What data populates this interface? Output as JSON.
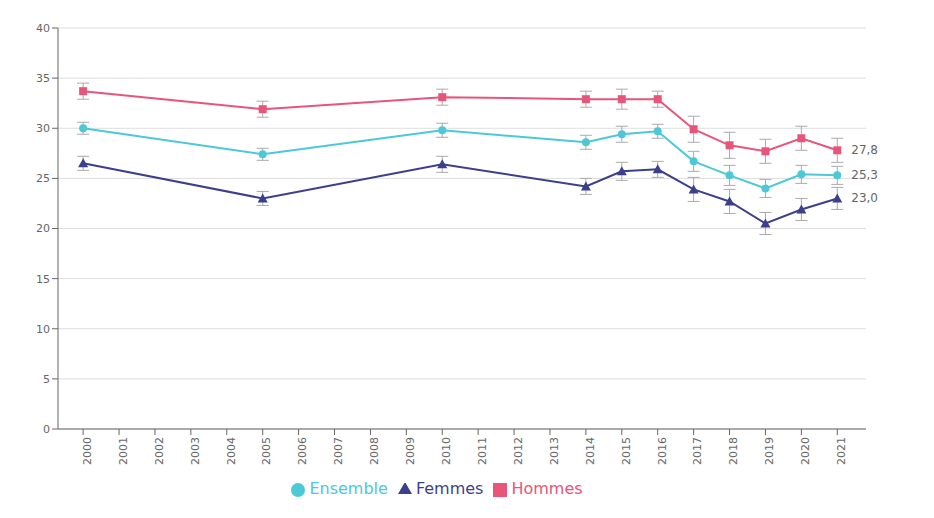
{
  "chart_data": {
    "type": "line",
    "x": [
      2000,
      2001,
      2002,
      2003,
      2004,
      2005,
      2006,
      2007,
      2008,
      2009,
      2010,
      2011,
      2012,
      2013,
      2014,
      2015,
      2016,
      2017,
      2018,
      2019,
      2020,
      2021
    ],
    "xlim": [
      1999.3,
      2021.8
    ],
    "xticks": [
      2000,
      2001,
      2002,
      2003,
      2004,
      2005,
      2006,
      2007,
      2008,
      2009,
      2010,
      2011,
      2012,
      2013,
      2014,
      2015,
      2016,
      2017,
      2018,
      2019,
      2020,
      2021
    ],
    "ylim": [
      0,
      40
    ],
    "yticks": [
      0,
      5,
      10,
      15,
      20,
      25,
      30,
      35,
      40
    ],
    "grid": true,
    "legend": "bottom",
    "series": [
      {
        "name": "Hommes",
        "color": "#E8557A",
        "marker": "square",
        "values": [
          33.7,
          null,
          null,
          null,
          null,
          31.9,
          null,
          null,
          null,
          null,
          33.1,
          null,
          null,
          null,
          32.9,
          32.9,
          32.9,
          29.9,
          28.3,
          27.7,
          29.0,
          27.8
        ],
        "errors": [
          0.8,
          null,
          null,
          null,
          null,
          0.8,
          null,
          null,
          null,
          null,
          0.8,
          null,
          null,
          null,
          0.8,
          1.0,
          0.8,
          1.3,
          1.3,
          1.2,
          1.2,
          1.2
        ],
        "value_labels": [
          null,
          null,
          null,
          null,
          null,
          null,
          null,
          null,
          null,
          null,
          null,
          null,
          null,
          null,
          null,
          null,
          null,
          null,
          null,
          null,
          null,
          "27,8"
        ]
      },
      {
        "name": "Femmes",
        "color": "#3B3F8C",
        "marker": "triangle",
        "values": [
          26.5,
          null,
          null,
          null,
          null,
          23.0,
          null,
          null,
          null,
          null,
          26.4,
          null,
          null,
          null,
          24.2,
          25.7,
          25.9,
          23.9,
          22.7,
          20.5,
          21.9,
          23.0
        ],
        "errors": [
          0.7,
          null,
          null,
          null,
          null,
          0.7,
          null,
          null,
          null,
          null,
          0.8,
          null,
          null,
          null,
          0.8,
          0.9,
          0.8,
          1.2,
          1.2,
          1.1,
          1.1,
          1.1
        ],
        "value_labels": [
          null,
          null,
          null,
          null,
          null,
          null,
          null,
          null,
          null,
          null,
          null,
          null,
          null,
          null,
          null,
          null,
          null,
          null,
          null,
          null,
          null,
          "23,0"
        ]
      },
      {
        "name": "Ensemble",
        "color": "#4CC8D8",
        "marker": "circle",
        "values": [
          30.0,
          null,
          null,
          null,
          null,
          27.4,
          null,
          null,
          null,
          null,
          29.8,
          null,
          null,
          null,
          28.6,
          29.4,
          29.7,
          26.7,
          25.3,
          24.0,
          25.4,
          25.3
        ],
        "errors": [
          0.6,
          null,
          null,
          null,
          null,
          0.6,
          null,
          null,
          null,
          null,
          0.7,
          null,
          null,
          null,
          0.7,
          0.8,
          0.7,
          1.0,
          1.0,
          0.9,
          0.9,
          0.9
        ],
        "value_labels": [
          null,
          null,
          null,
          null,
          null,
          null,
          null,
          null,
          null,
          null,
          null,
          null,
          null,
          null,
          null,
          null,
          null,
          null,
          null,
          null,
          null,
          "25,3"
        ]
      }
    ]
  }
}
